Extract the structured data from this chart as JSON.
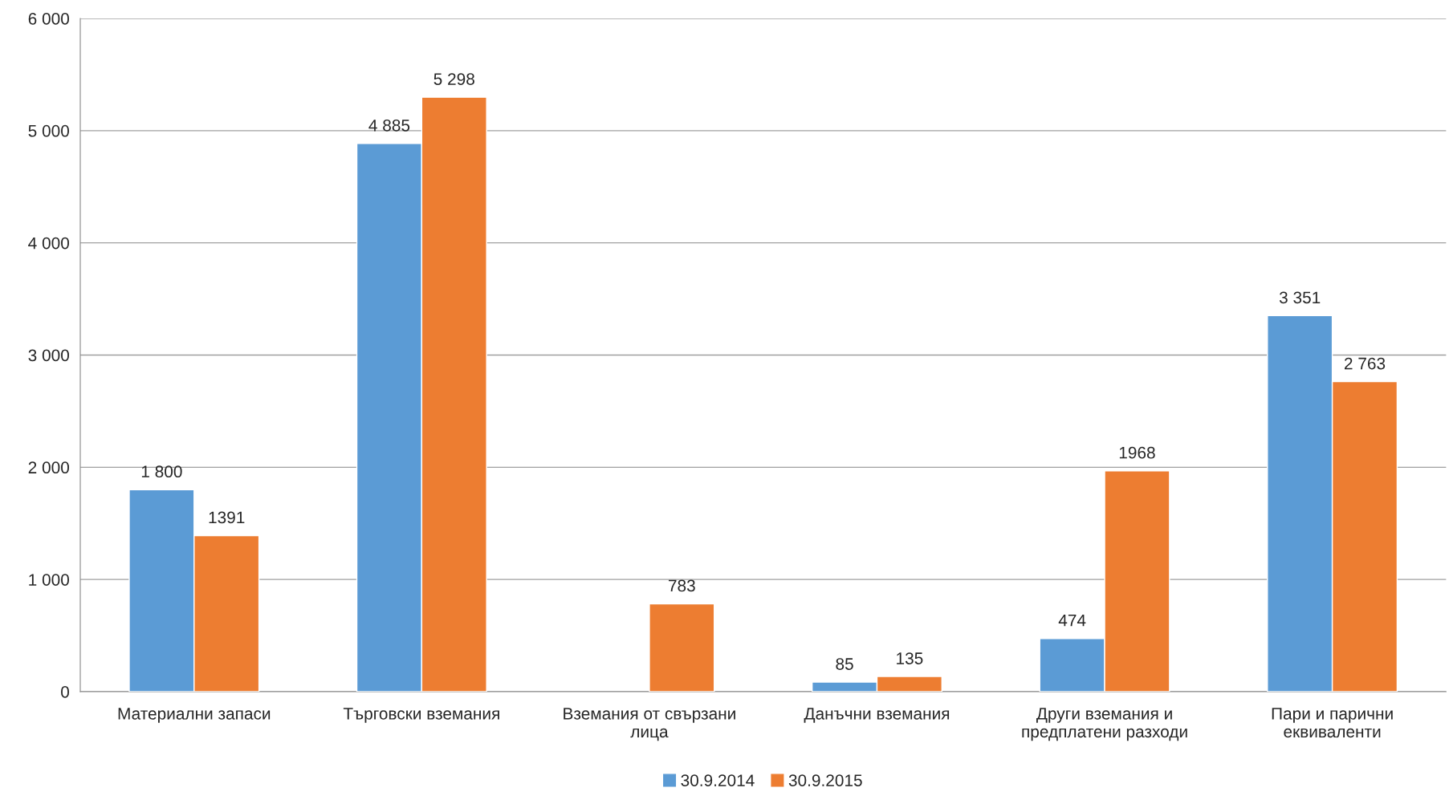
{
  "chart_data": {
    "type": "bar",
    "categories": [
      "Материални запаси",
      "Търговски вземания",
      "Вземания от свързани\nлица",
      "Данъчни вземания",
      "Други вземания и\nпредплатени разходи",
      "Пари и парични\nеквиваленти"
    ],
    "series": [
      {
        "name": "30.9.2014",
        "color": "#5b9bd5",
        "values": [
          1800,
          4885,
          null,
          85,
          474,
          3351
        ],
        "value_labels": [
          "1 800",
          "4 885",
          null,
          "85",
          "474",
          "3 351"
        ]
      },
      {
        "name": "30.9.2015",
        "color": "#ed7d31",
        "values": [
          1391,
          5298,
          783,
          135,
          1968,
          2763
        ],
        "value_labels": [
          "1391",
          "5 298",
          "783",
          "135",
          "1968",
          "2 763"
        ]
      }
    ],
    "ylim": [
      0,
      6000
    ],
    "yticks": [
      {
        "value": 0,
        "label": "0"
      },
      {
        "value": 1000,
        "label": "1 000"
      },
      {
        "value": 2000,
        "label": "2 000"
      },
      {
        "value": 3000,
        "label": "3 000"
      },
      {
        "value": 4000,
        "label": "4 000"
      },
      {
        "value": 5000,
        "label": "5 000"
      },
      {
        "value": 6000,
        "label": "6 000"
      }
    ],
    "grid": "y",
    "legend": "bottom"
  }
}
